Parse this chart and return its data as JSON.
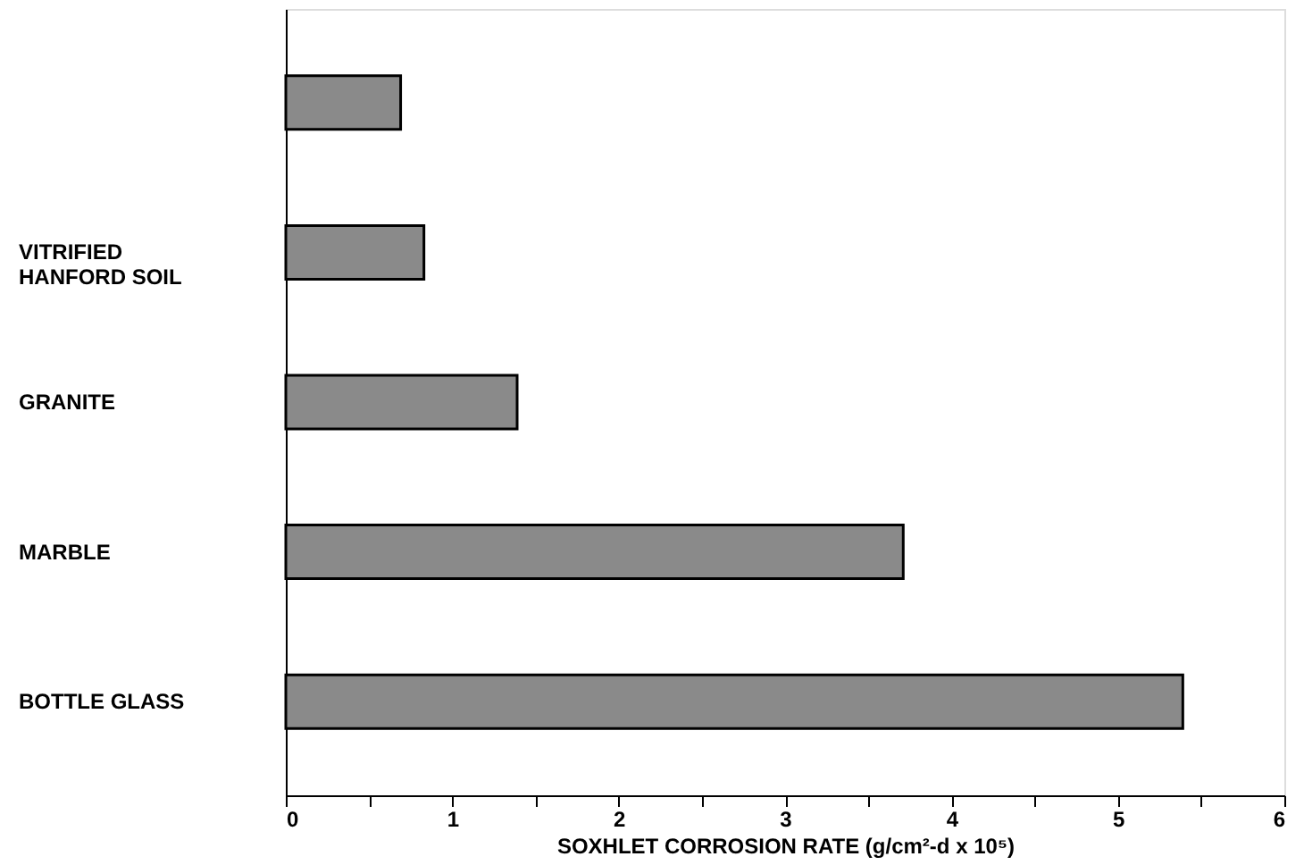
{
  "chart_data": {
    "type": "bar",
    "orientation": "horizontal",
    "xlabel": "SOXHLET CORROSION RATE (g/cm²-d x 10⁵)",
    "categories": [
      null,
      "VITRIFIED HANFORD SOIL",
      "GRANITE",
      "MARBLE",
      "BOTTLE GLASS"
    ],
    "values": [
      0.69,
      0.83,
      1.39,
      3.71,
      5.39
    ],
    "color": "#8a8a8a",
    "xlim": [
      0,
      6
    ],
    "xticks": [
      0,
      {
        "value": 0.5,
        "label": null
      },
      1,
      {
        "value": 1.5,
        "label": null
      },
      2,
      {
        "value": 2.5,
        "label": null
      },
      3,
      {
        "value": 3.5,
        "label": null
      },
      4,
      {
        "value": 4.5,
        "label": null
      },
      5,
      {
        "value": 5.5,
        "label": null
      },
      6
    ],
    "grid": false
  }
}
